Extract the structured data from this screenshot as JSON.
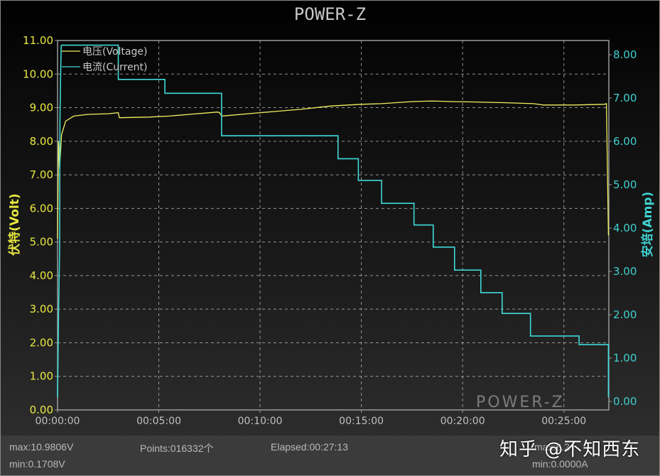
{
  "window": {
    "title": "POWER-Z",
    "watermark_logo": "POWER-Z",
    "overlay_text": "知乎 @不知西东"
  },
  "legend": {
    "voltage_label": "电压(Voltage)",
    "current_label": "电流(Current)"
  },
  "axes": {
    "left_label": "伏特(Volt)",
    "right_label": "安培(Amp)",
    "left_ticks": [
      "0.00",
      "1.00",
      "2.00",
      "3.00",
      "4.00",
      "5.00",
      "6.00",
      "7.00",
      "8.00",
      "9.00",
      "10.00",
      "11.00"
    ],
    "right_ticks": [
      "0.00",
      "1.00",
      "2.00",
      "3.00",
      "4.00",
      "5.00",
      "6.00",
      "7.00",
      "8.00"
    ],
    "x_ticks": [
      "00:00:00",
      "00:05:00",
      "00:10:00",
      "00:15:00",
      "00:20:00",
      "00:25:00"
    ]
  },
  "footer": {
    "v_max": "max:10.9806V",
    "v_min": "min:0.1708V",
    "points": "Points:016332个",
    "elapsed": "Elapsed:00:27:13",
    "a_max_partial": "max:8.2",
    "a_min": "min:0.0000A"
  },
  "colors": {
    "voltage": "#f0f060",
    "current": "#40d8d8",
    "left_axis_text": "#e8e840",
    "right_axis_text": "#40d0d0",
    "grid": "#bdbdbd"
  },
  "chart_data": {
    "type": "line",
    "title": "POWER-Z",
    "xlabel": "",
    "ylabel": "伏特(Volt)",
    "y2label": "安培(Amp)",
    "xlim_minutes": [
      0,
      27.22
    ],
    "ylim": [
      0,
      11
    ],
    "y2lim": [
      0,
      8.2
    ],
    "grid": true,
    "legend_position": "top-left",
    "x_tick_labels": [
      "00:00:00",
      "00:05:00",
      "00:10:00",
      "00:15:00",
      "00:20:00",
      "00:25:00"
    ],
    "series": [
      {
        "name": "电压(Voltage)",
        "axis": "left",
        "unit": "V",
        "x_minutes": [
          0,
          0.05,
          0.1,
          0.2,
          0.4,
          0.8,
          1.5,
          2.5,
          3.0,
          3.05,
          4.5,
          5.5,
          6.5,
          7.9,
          8.0,
          8.1,
          10.0,
          12.0,
          13.5,
          15.0,
          16.0,
          17.5,
          18.5,
          19.5,
          20.5,
          22.0,
          23.5,
          24.0,
          25.5,
          27.0,
          27.1,
          27.2
        ],
        "values": [
          5.1,
          8.0,
          7.2,
          8.2,
          8.6,
          8.75,
          8.8,
          8.82,
          8.85,
          8.7,
          8.72,
          8.75,
          8.8,
          8.87,
          8.85,
          8.75,
          8.85,
          8.95,
          9.05,
          9.1,
          9.12,
          9.18,
          9.2,
          9.18,
          9.17,
          9.15,
          9.12,
          9.08,
          9.08,
          9.1,
          9.12,
          5.2
        ]
      },
      {
        "name": "电流(Current)",
        "axis": "right",
        "unit": "A",
        "x_minutes": [
          0,
          0.05,
          0.1,
          0.12,
          0.15,
          0.18,
          0.2,
          3.0,
          3.0,
          5.3,
          5.3,
          8.1,
          8.1,
          13.85,
          13.85,
          14.85,
          14.85,
          16.0,
          16.0,
          17.6,
          17.6,
          18.55,
          18.55,
          19.6,
          19.6,
          20.9,
          20.9,
          21.95,
          21.95,
          23.35,
          23.35,
          25.75,
          25.75,
          27.2,
          27.2
        ],
        "values": [
          0.1,
          2.0,
          3.5,
          6.5,
          7.5,
          8.2,
          8.22,
          8.22,
          7.43,
          7.43,
          7.11,
          7.11,
          6.13,
          6.13,
          5.6,
          5.6,
          5.1,
          5.1,
          4.57,
          4.57,
          4.07,
          4.07,
          3.56,
          3.56,
          3.03,
          3.03,
          2.51,
          2.51,
          2.03,
          2.03,
          1.51,
          1.51,
          1.31,
          1.31,
          0.1
        ]
      }
    ],
    "stats": {
      "voltage_max": "10.9806V",
      "voltage_min": "0.1708V",
      "current_min": "0.0000A",
      "points": "016332",
      "elapsed": "00:27:13"
    }
  }
}
